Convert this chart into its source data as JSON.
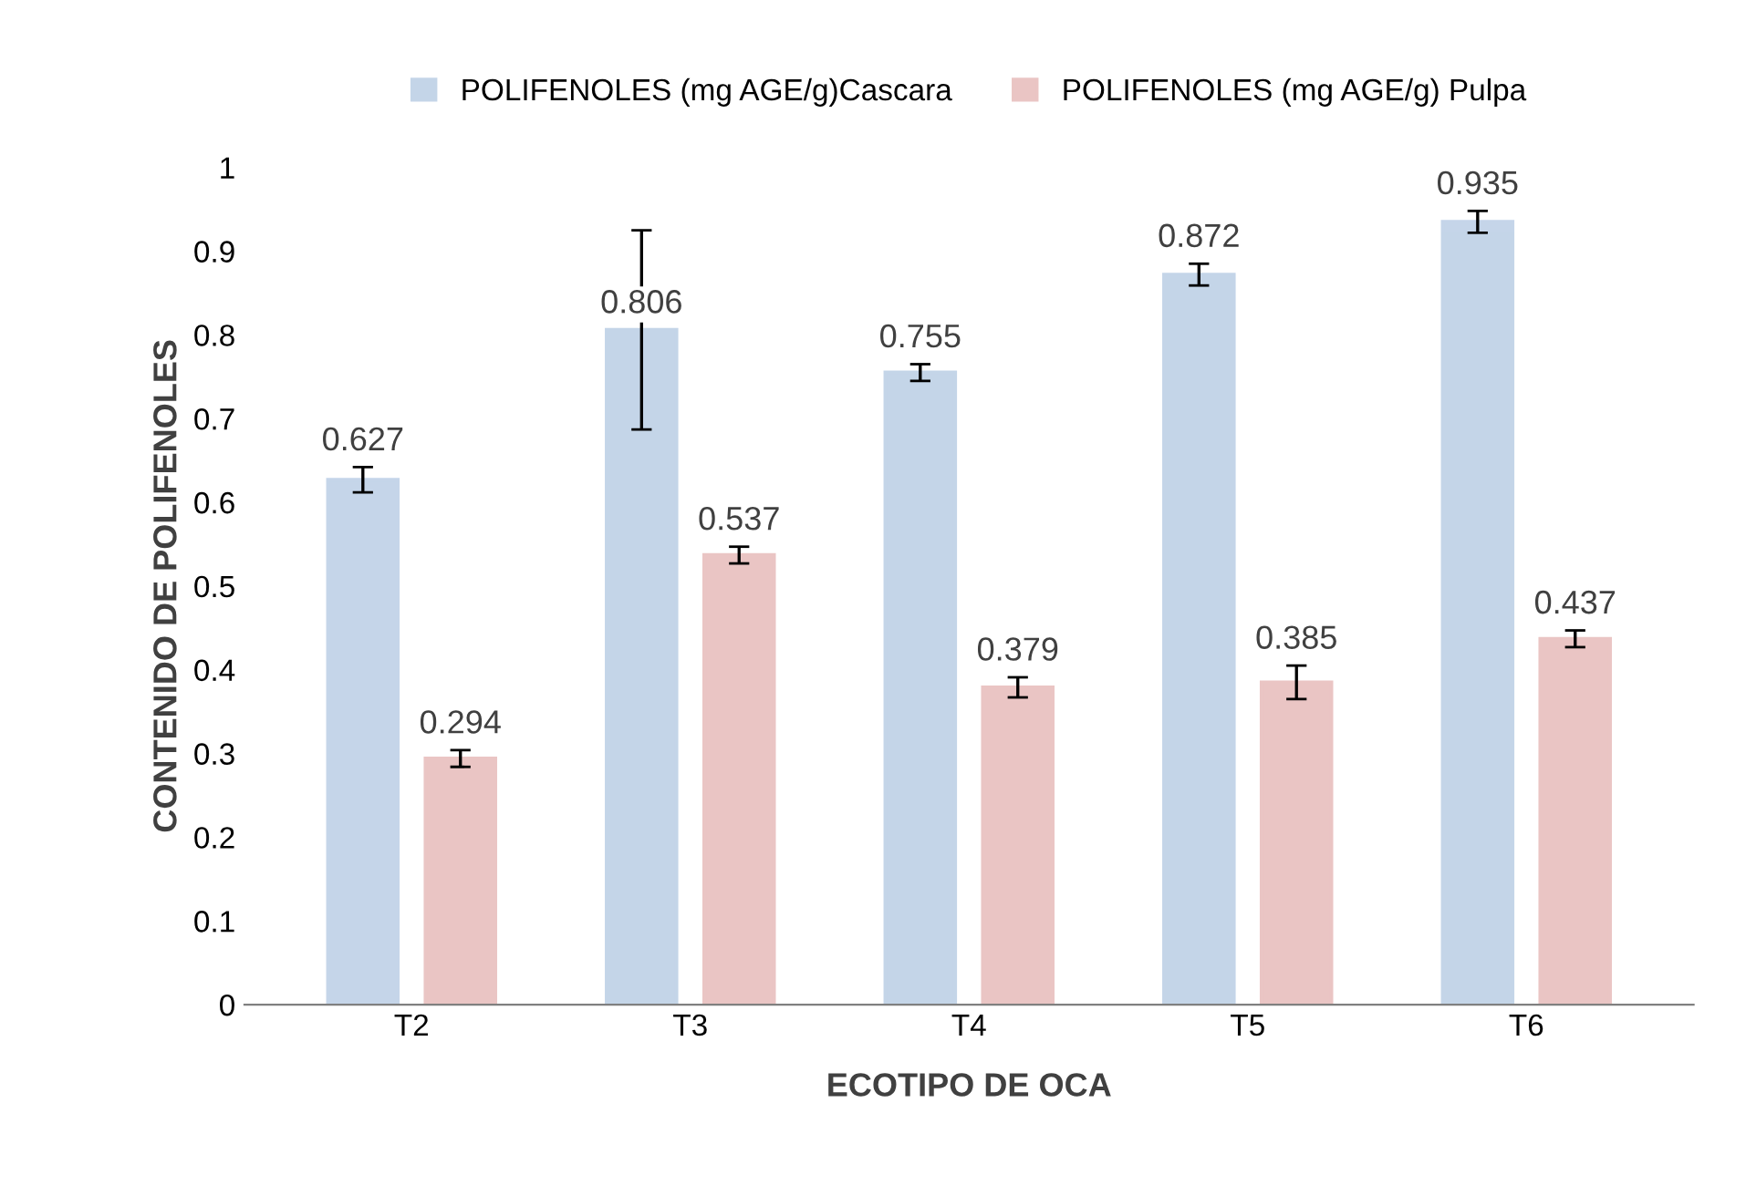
{
  "chart_data": {
    "type": "bar",
    "xlabel": "ECOTIPO DE OCA",
    "ylabel": "CONTENIDO DE POLIFENOLES",
    "categories": [
      "T2",
      "T3",
      "T4",
      "T5",
      "T6"
    ],
    "series": [
      {
        "name": "POLIFENOLES (mg AGE/g)Cascara",
        "color": "#95b3d7",
        "values": [
          0.627,
          0.806,
          0.755,
          0.872,
          0.935
        ],
        "errors": [
          0.015,
          0.119,
          0.01,
          0.013,
          0.013
        ]
      },
      {
        "name": "POLIFENOLES (mg AGE/g) Pulpa",
        "color": "#d99694",
        "values": [
          0.294,
          0.537,
          0.379,
          0.385,
          0.437
        ],
        "errors": [
          0.01,
          0.01,
          0.012,
          0.02,
          0.01
        ]
      }
    ],
    "ylim": [
      0,
      1
    ],
    "yticks": [
      0,
      0.1,
      0.2,
      0.3,
      0.4,
      0.5,
      0.6,
      0.7,
      0.8,
      0.9,
      1
    ],
    "data_labels": true,
    "legend": "top",
    "grid": false
  }
}
